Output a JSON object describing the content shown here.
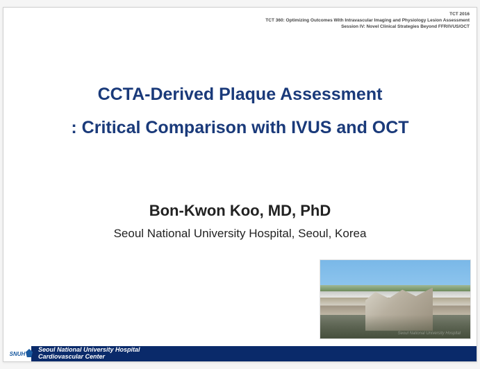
{
  "header": {
    "line1": "TCT 2016",
    "line2": "TCT 360: Optimizing Outcomes With Intravascular Imaging and Physiology Lesion Assessment",
    "line3": "Session IV: Novel Clinical Strategies Beyond FFR/IVUS/OCT"
  },
  "title": {
    "line1": "CCTA-Derived Plaque Assessment",
    "line2": ": Critical Comparison with IVUS and OCT",
    "color": "#1a3a7a",
    "fontsize": 25
  },
  "author": {
    "name": "Bon-Kwon Koo, MD, PhD",
    "affiliation": "Seoul National University Hospital, Seoul, Korea",
    "name_fontsize": 22,
    "affil_fontsize": 17
  },
  "photo": {
    "watermark": "Seoul National University Hospital"
  },
  "footer": {
    "logo_text": "SNUH",
    "line1": "Seoul National University Hospital",
    "line2": "Cardiovascular Center",
    "bar_color": "#0a2a6a"
  }
}
